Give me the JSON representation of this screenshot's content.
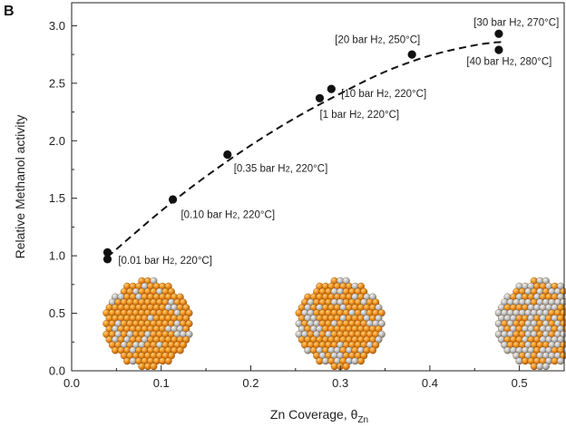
{
  "chart_data": {
    "type": "scatter",
    "panel_label": "B",
    "xlabel": "Zn Coverage, θ",
    "xlabel_sub": "Zn",
    "ylabel": "Relative Methanol activity",
    "xlim": [
      0.0,
      0.55
    ],
    "ylim": [
      0.0,
      3.2
    ],
    "xticks": [
      0.0,
      0.1,
      0.2,
      0.3,
      0.4,
      0.5
    ],
    "xtick_labels": [
      "0.0",
      "0.1",
      "0.2",
      "0.3",
      "0.4",
      "0.5"
    ],
    "yticks": [
      0.0,
      0.5,
      1.0,
      1.5,
      2.0,
      2.5,
      3.0
    ],
    "ytick_labels": [
      "0.0",
      "0.5",
      "1.0",
      "1.5",
      "2.0",
      "2.5",
      "3.0"
    ],
    "grid": false,
    "points": [
      {
        "x": 0.04,
        "y": 1.03
      },
      {
        "x": 0.04,
        "y": 0.97
      },
      {
        "x": 0.113,
        "y": 1.49
      },
      {
        "x": 0.174,
        "y": 1.88
      },
      {
        "x": 0.277,
        "y": 2.37
      },
      {
        "x": 0.29,
        "y": 2.45
      },
      {
        "x": 0.38,
        "y": 2.75
      },
      {
        "x": 0.477,
        "y": 2.93
      },
      {
        "x": 0.477,
        "y": 2.79
      }
    ],
    "fit_curve": {
      "style": "dashed",
      "x": [
        0.04,
        0.1,
        0.15,
        0.2,
        0.25,
        0.3,
        0.35,
        0.4,
        0.45,
        0.48
      ],
      "y": [
        0.99,
        1.39,
        1.69,
        1.96,
        2.2,
        2.41,
        2.6,
        2.74,
        2.83,
        2.86
      ]
    },
    "annotations": [
      {
        "pre": "[0.01 bar H",
        "sub": "2",
        "post": ", 220°C]",
        "x": 0.052,
        "y": 0.93
      },
      {
        "pre": "[0.10 bar H",
        "sub": "2",
        "post": ", 220°C]",
        "x": 0.122,
        "y": 1.33
      },
      {
        "pre": "[0.35 bar H",
        "sub": "2",
        "post": ", 220°C]",
        "x": 0.181,
        "y": 1.73
      },
      {
        "pre": "[1 bar H",
        "sub": "2",
        "post": ", 220°C]",
        "x": 0.277,
        "y": 2.2
      },
      {
        "pre": "[10 bar H",
        "sub": "2",
        "post": ", 220°C]",
        "x": 0.301,
        "y": 2.38
      },
      {
        "pre": "[20 bar H",
        "sub": "2",
        "post": ", 250°C]",
        "x": 0.294,
        "y": 2.85
      },
      {
        "pre": "[30 bar H",
        "sub": "2",
        "post": ", 270°C]",
        "x": 0.449,
        "y": 3.0
      },
      {
        "pre": "[40 bar H",
        "sub": "2",
        "post": ", 280°C]",
        "x": 0.441,
        "y": 2.66
      }
    ],
    "nanoparticle_images": [
      {
        "description": "low Zn coverage nanoparticle",
        "zn_fraction": 0.12,
        "x": 0.085
      },
      {
        "description": "medium Zn coverage nanoparticle",
        "zn_fraction": 0.25,
        "x": 0.3
      },
      {
        "description": "high Zn coverage nanoparticle",
        "zn_fraction": 0.45,
        "x": 0.523
      }
    ],
    "colors": {
      "point": "#111111",
      "curve": "#111111",
      "cu_atom": "#f0961e",
      "zn_atom": "#b8b8b8",
      "axis": "#222222"
    }
  }
}
